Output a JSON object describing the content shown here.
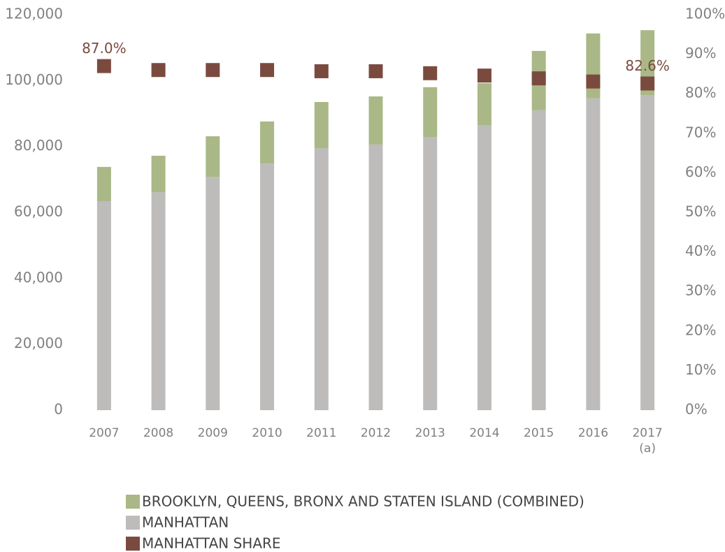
{
  "chart_data": {
    "type": "bar",
    "categories": [
      "2007",
      "2008",
      "2009",
      "2010",
      "2011",
      "2012",
      "2013",
      "2014",
      "2015",
      "2016",
      "2017\n(a)"
    ],
    "series": [
      {
        "name": "BROOKLYN, QUEENS, BRONX AND STATEN ISLAND (COMBINED)",
        "color": "#a9b886",
        "values": [
          10400,
          11100,
          12300,
          12800,
          14000,
          14600,
          15100,
          12700,
          18000,
          19700,
          19700
        ]
      },
      {
        "name": "MANHATTAN",
        "color": "#bdbcbb",
        "values": [
          63400,
          66100,
          70800,
          74800,
          79500,
          80600,
          82900,
          86500,
          91000,
          94600,
          95600
        ]
      },
      {
        "name": "MANHATTAN SHARE",
        "color": "#7b4a3f",
        "axis": "y2",
        "values": [
          87.0,
          86.0,
          86.0,
          86.0,
          85.7,
          85.7,
          85.2,
          84.6,
          83.9,
          83.1,
          82.6
        ],
        "value_labels": [
          "87.0%",
          null,
          null,
          null,
          null,
          null,
          null,
          null,
          null,
          null,
          "82.6%"
        ]
      }
    ],
    "ylim": [
      0,
      120000
    ],
    "yticks": [
      0,
      {
        "value": 20000,
        "label": "20,000"
      },
      {
        "value": 40000,
        "label": "40,000"
      },
      {
        "value": 60000,
        "label": "60,000"
      },
      {
        "value": 80000,
        "label": "80,000"
      },
      {
        "value": 100000,
        "label": "100,000"
      },
      {
        "value": 120000,
        "label": "120,000"
      }
    ],
    "y2lim": [
      0,
      100
    ],
    "y2ticks": [
      {
        "value": 0,
        "label": "0%"
      },
      {
        "value": 10,
        "label": "10%"
      },
      {
        "value": 20,
        "label": "20%"
      },
      {
        "value": 30,
        "label": "30%"
      },
      {
        "value": 40,
        "label": "40%"
      },
      {
        "value": 50,
        "label": "50%"
      },
      {
        "value": 60,
        "label": "60%"
      },
      {
        "value": 70,
        "label": "70%"
      },
      {
        "value": 80,
        "label": "80%"
      },
      {
        "value": 90,
        "label": "90%"
      },
      {
        "value": 100,
        "label": "100%"
      }
    ],
    "legend": "bottom"
  }
}
